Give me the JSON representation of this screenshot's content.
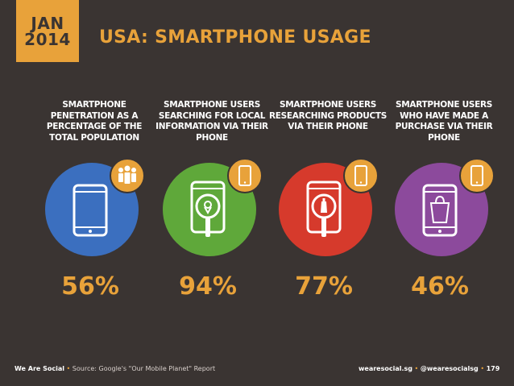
{
  "date": {
    "month": "JAN",
    "year": "2014"
  },
  "title": "USA: SMARTPHONE USAGE",
  "colors": {
    "accent": "#e8a23a",
    "background": "#3a3432",
    "blue": "#3b6fbf",
    "green": "#5fa83a",
    "red": "#d63a2c",
    "purple": "#8c4a9c"
  },
  "metrics": [
    {
      "label": "SMARTPHONE PENETRATION AS A PERCENTAGE OF THE TOTAL POPULATION",
      "value": "56%",
      "color": "#3b6fbf",
      "badge_icon": "people-icon",
      "center_icon": "smartphone-icon"
    },
    {
      "label": "SMARTPHONE USERS SEARCHING FOR LOCAL INFORMATION VIA THEIR PHONE",
      "value": "94%",
      "color": "#5fa83a",
      "badge_icon": "smartphone-icon",
      "center_icon": "location-search-icon"
    },
    {
      "label": "SMARTPHONE USERS RESEARCHING PRODUCTS VIA THEIR PHONE",
      "value": "77%",
      "color": "#d63a2c",
      "badge_icon": "smartphone-icon",
      "center_icon": "product-search-icon"
    },
    {
      "label": "SMARTPHONE USERS WHO HAVE MADE A PURCHASE VIA THEIR PHONE",
      "value": "46%",
      "color": "#8c4a9c",
      "badge_icon": "smartphone-icon",
      "center_icon": "shopping-bag-icon"
    }
  ],
  "footer": {
    "brand": "We Are Social",
    "source": "Source: Google's \"Our Mobile Planet\" Report",
    "website": "wearesocial.sg",
    "handle": "@wearesocialsg",
    "page": "179"
  }
}
